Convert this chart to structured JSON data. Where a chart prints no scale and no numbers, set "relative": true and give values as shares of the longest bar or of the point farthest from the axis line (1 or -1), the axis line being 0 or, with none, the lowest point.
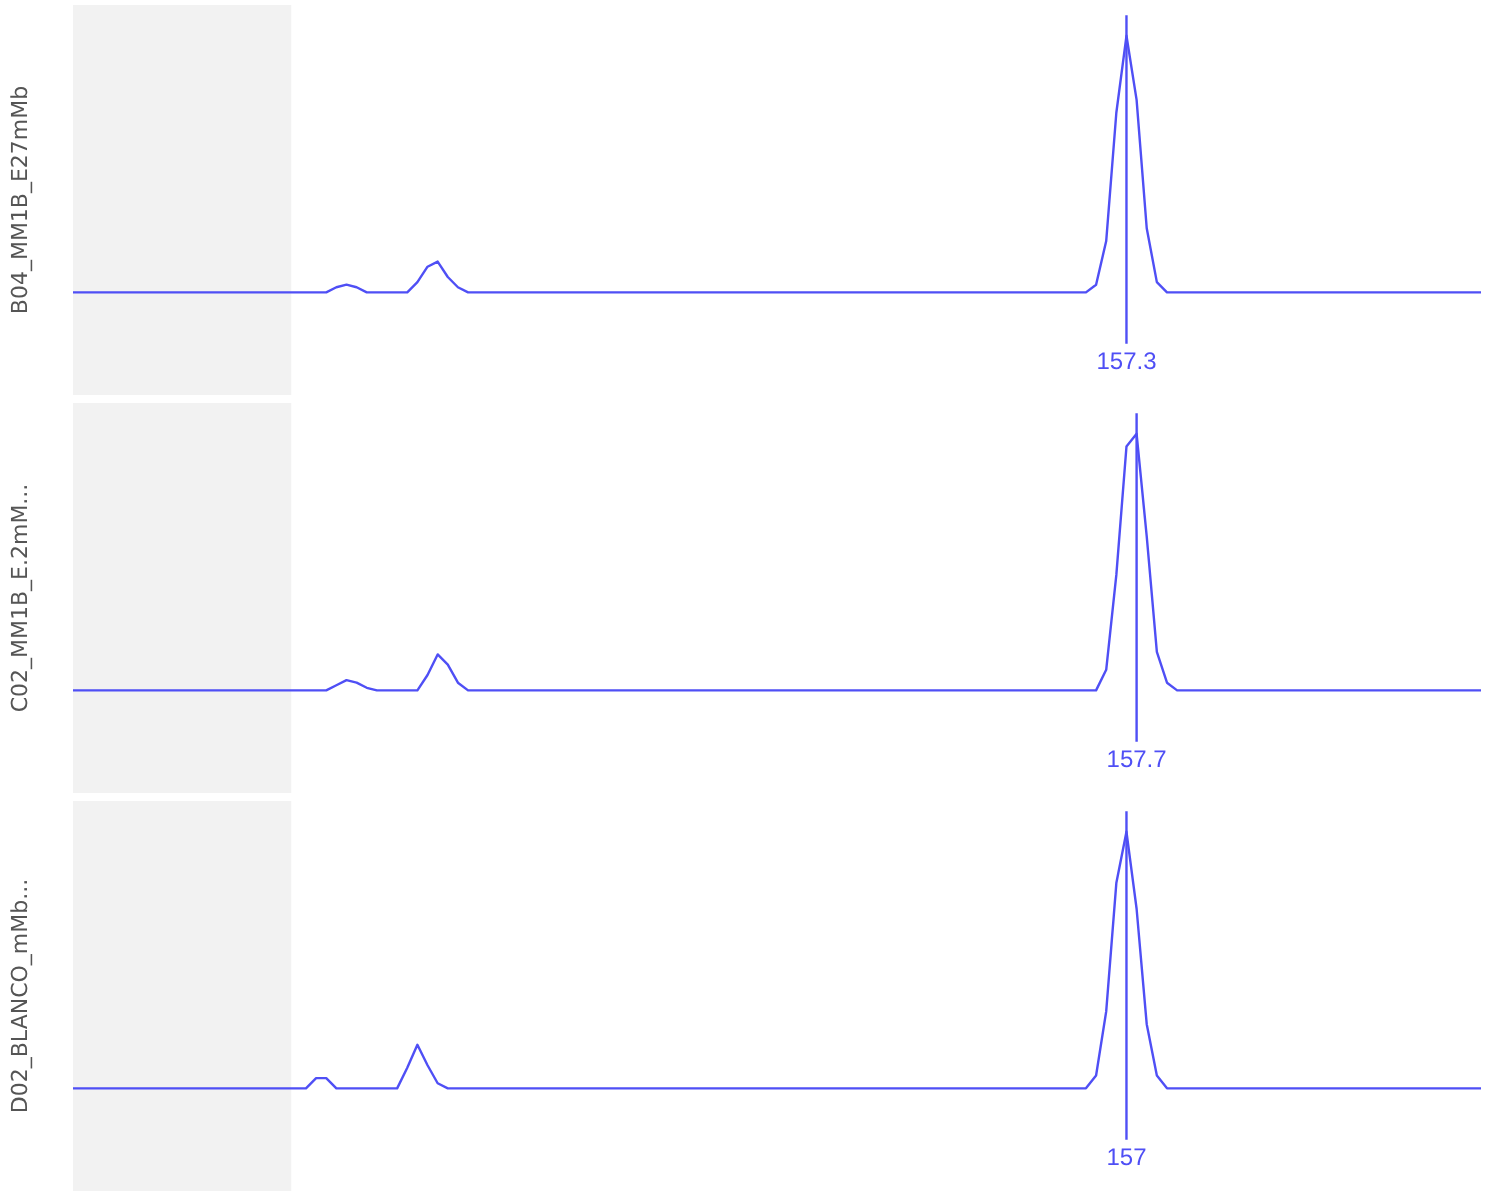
{
  "chart_data": [
    {
      "type": "line",
      "relative": true,
      "ylabel": "B04_MM1B_E27mMb",
      "color": "#4f4ff5",
      "grid": false,
      "tick_labels": false,
      "categories": [
        null,
        null,
        null,
        null,
        null,
        null,
        null,
        null,
        null,
        null,
        null,
        null,
        null,
        null,
        null,
        null,
        null,
        null,
        null,
        null,
        null,
        null,
        null,
        null,
        null,
        null,
        null,
        null,
        null,
        null,
        null,
        null,
        null,
        null,
        null,
        null,
        null,
        null,
        null,
        null,
        null,
        null,
        null,
        null,
        null,
        null,
        null,
        null,
        null,
        null,
        null,
        null,
        null,
        null,
        null,
        null,
        null,
        null,
        null,
        null,
        null,
        null,
        null,
        null,
        null,
        null,
        null,
        null,
        null,
        null,
        null,
        null,
        null,
        null,
        null,
        null,
        null,
        null,
        null,
        null,
        null,
        null,
        null,
        null,
        null,
        null,
        null,
        null,
        null,
        null,
        null,
        null,
        null,
        null,
        null,
        null,
        null,
        null,
        null,
        null,
        null,
        null,
        null,
        null,
        null,
        null,
        null,
        null,
        null,
        null,
        null,
        null,
        null,
        null,
        null,
        null,
        null,
        null,
        null,
        null,
        null,
        null,
        null,
        null,
        null,
        null,
        null,
        null,
        null,
        null,
        null,
        null,
        null,
        null,
        null,
        null,
        null,
        null,
        null,
        null
      ],
      "values": [
        0,
        0,
        0,
        0,
        0,
        0,
        0,
        0,
        0,
        0,
        0,
        0,
        0,
        0,
        0,
        0,
        0,
        0,
        0,
        0,
        0,
        0,
        0,
        0,
        0,
        0,
        0.02,
        0.03,
        0.02,
        0,
        0,
        0,
        0,
        0,
        0.04,
        0.1,
        0.12,
        0.06,
        0.02,
        0,
        0,
        0,
        0,
        0,
        0,
        0,
        0,
        0,
        0,
        0,
        0,
        0,
        0,
        0,
        0,
        0,
        0,
        0,
        0,
        0,
        0,
        0,
        0,
        0,
        0,
        0,
        0,
        0,
        0,
        0,
        0,
        0,
        0,
        0,
        0,
        0,
        0,
        0,
        0,
        0,
        0,
        0,
        0,
        0,
        0,
        0,
        0,
        0,
        0,
        0,
        0,
        0,
        0,
        0,
        0,
        0,
        0,
        0,
        0,
        0,
        0,
        0.03,
        0.2,
        0.7,
        1,
        0.75,
        0.25,
        0.04,
        0,
        0,
        0,
        0,
        0,
        0,
        0,
        0,
        0,
        0,
        0,
        0,
        0,
        0,
        0,
        0,
        0,
        0,
        0,
        0,
        0,
        0,
        0,
        0,
        0,
        0,
        0,
        0,
        0,
        0,
        0,
        0
      ],
      "annotations": [
        "157.3"
      ]
    },
    {
      "type": "line",
      "relative": true,
      "ylabel": "C02_MM1B_E.2mM...",
      "color": "#4f4ff5",
      "grid": false,
      "tick_labels": false,
      "categories": [
        null,
        null,
        null,
        null,
        null,
        null,
        null,
        null,
        null,
        null,
        null,
        null,
        null,
        null,
        null,
        null,
        null,
        null,
        null,
        null,
        null,
        null,
        null,
        null,
        null,
        null,
        null,
        null,
        null,
        null,
        null,
        null,
        null,
        null,
        null,
        null,
        null,
        null,
        null,
        null,
        null,
        null,
        null,
        null,
        null,
        null,
        null,
        null,
        null,
        null,
        null,
        null,
        null,
        null,
        null,
        null,
        null,
        null,
        null,
        null,
        null,
        null,
        null,
        null,
        null,
        null,
        null,
        null,
        null,
        null,
        null,
        null,
        null,
        null,
        null,
        null,
        null,
        null,
        null,
        null,
        null,
        null,
        null,
        null,
        null,
        null,
        null,
        null,
        null,
        null,
        null,
        null,
        null,
        null,
        null,
        null,
        null,
        null,
        null,
        null,
        null,
        null,
        null,
        null,
        null,
        null,
        null,
        null,
        null,
        null,
        null,
        null,
        null,
        null,
        null,
        null,
        null,
        null,
        null,
        null,
        null,
        null,
        null,
        null,
        null,
        null,
        null,
        null,
        null,
        null,
        null,
        null,
        null,
        null,
        null,
        null,
        null,
        null,
        null,
        null
      ],
      "values": [
        0,
        0,
        0,
        0,
        0,
        0,
        0,
        0,
        0,
        0,
        0,
        0,
        0,
        0,
        0,
        0,
        0,
        0,
        0,
        0,
        0,
        0,
        0,
        0,
        0,
        0,
        0.02,
        0.04,
        0.03,
        0.01,
        0,
        0,
        0,
        0,
        0,
        0.06,
        0.14,
        0.1,
        0.03,
        0,
        0,
        0,
        0,
        0,
        0,
        0,
        0,
        0,
        0,
        0,
        0,
        0,
        0,
        0,
        0,
        0,
        0,
        0,
        0,
        0,
        0,
        0,
        0,
        0,
        0,
        0,
        0,
        0,
        0,
        0,
        0,
        0,
        0,
        0,
        0,
        0,
        0,
        0,
        0,
        0,
        0,
        0,
        0,
        0,
        0,
        0,
        0,
        0,
        0,
        0,
        0,
        0,
        0,
        0,
        0,
        0,
        0,
        0,
        0,
        0,
        0,
        0,
        0.08,
        0.45,
        0.95,
        1,
        0.6,
        0.15,
        0.03,
        0,
        0,
        0,
        0,
        0,
        0,
        0,
        0,
        0,
        0,
        0,
        0,
        0,
        0,
        0,
        0,
        0,
        0,
        0,
        0,
        0,
        0,
        0,
        0,
        0,
        0,
        0,
        0,
        0,
        0,
        0
      ],
      "annotations": [
        "157.7"
      ]
    },
    {
      "type": "line",
      "relative": true,
      "ylabel": "D02_BLANCO_mMb...",
      "color": "#4f4ff5",
      "grid": false,
      "tick_labels": false,
      "categories": [
        null,
        null,
        null,
        null,
        null,
        null,
        null,
        null,
        null,
        null,
        null,
        null,
        null,
        null,
        null,
        null,
        null,
        null,
        null,
        null,
        null,
        null,
        null,
        null,
        null,
        null,
        null,
        null,
        null,
        null,
        null,
        null,
        null,
        null,
        null,
        null,
        null,
        null,
        null,
        null,
        null,
        null,
        null,
        null,
        null,
        null,
        null,
        null,
        null,
        null,
        null,
        null,
        null,
        null,
        null,
        null,
        null,
        null,
        null,
        null,
        null,
        null,
        null,
        null,
        null,
        null,
        null,
        null,
        null,
        null,
        null,
        null,
        null,
        null,
        null,
        null,
        null,
        null,
        null,
        null,
        null,
        null,
        null,
        null,
        null,
        null,
        null,
        null,
        null,
        null,
        null,
        null,
        null,
        null,
        null,
        null,
        null,
        null,
        null,
        null,
        null,
        null,
        null,
        null,
        null,
        null,
        null,
        null,
        null,
        null,
        null,
        null,
        null,
        null,
        null,
        null,
        null,
        null,
        null,
        null,
        null,
        null,
        null,
        null,
        null,
        null,
        null,
        null,
        null,
        null,
        null,
        null,
        null,
        null,
        null,
        null,
        null,
        null,
        null,
        null
      ],
      "values": [
        0,
        0,
        0,
        0,
        0,
        0,
        0,
        0,
        0,
        0,
        0,
        0,
        0,
        0,
        0,
        0,
        0,
        0,
        0,
        0,
        0,
        0,
        0,
        0,
        0.04,
        0.04,
        0,
        0,
        0,
        0,
        0,
        0,
        0,
        0.08,
        0.17,
        0.09,
        0.02,
        0,
        0,
        0,
        0,
        0,
        0,
        0,
        0,
        0,
        0,
        0,
        0,
        0,
        0,
        0,
        0,
        0,
        0,
        0,
        0,
        0,
        0,
        0,
        0,
        0,
        0,
        0,
        0,
        0,
        0,
        0,
        0,
        0,
        0,
        0,
        0,
        0,
        0,
        0,
        0,
        0,
        0,
        0,
        0,
        0,
        0,
        0,
        0,
        0,
        0,
        0,
        0,
        0,
        0,
        0,
        0,
        0,
        0,
        0,
        0,
        0,
        0,
        0,
        0,
        0.05,
        0.3,
        0.8,
        1,
        0.7,
        0.25,
        0.05,
        0,
        0,
        0,
        0,
        0,
        0,
        0,
        0,
        0,
        0,
        0,
        0,
        0,
        0,
        0,
        0,
        0,
        0,
        0,
        0,
        0,
        0,
        0,
        0,
        0,
        0,
        0,
        0,
        0,
        0,
        0,
        0
      ],
      "annotations": [
        "157"
      ]
    }
  ]
}
